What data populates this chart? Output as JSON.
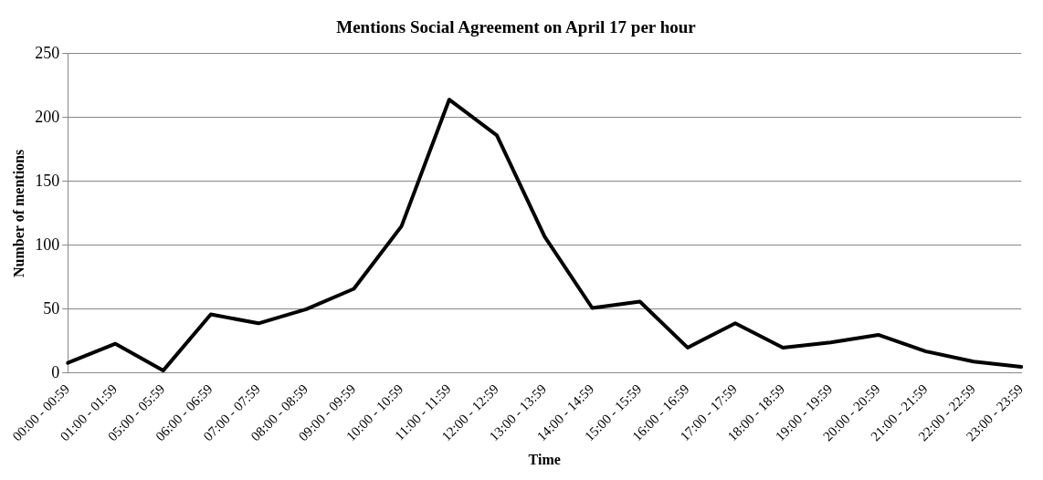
{
  "chart_data": {
    "type": "line",
    "title": "Mentions Social Agreement on April 17 per hour",
    "xlabel": "Time",
    "ylabel": "Number of mentions",
    "categories": [
      "00:00 - 00:59",
      "01:00 - 01:59",
      "05:00 - 05:59",
      "06:00 - 06:59",
      "07:00 - 07:59",
      "08:00 - 08:59",
      "09:00 - 09:59",
      "10:00 - 10:59",
      "11:00 - 11:59",
      "12:00 - 12:59",
      "13:00 - 13:59",
      "14:00 - 14:59",
      "15:00 - 15:59",
      "16:00 - 16:59",
      "17:00 - 17:59",
      "18:00 - 18:59",
      "19:00 - 19:59",
      "20:00 - 20:59",
      "21:00 - 21:59",
      "22:00 - 22:59",
      "23:00 - 23:59"
    ],
    "series": [
      {
        "color": "#000000",
        "values": [
          8,
          23,
          2,
          46,
          39,
          50,
          66,
          115,
          214,
          186,
          107,
          51,
          56,
          20,
          39,
          20,
          24,
          30,
          17,
          9,
          5
        ]
      }
    ],
    "ylim": [
      0,
      250
    ],
    "yticks": [
      0,
      50,
      100,
      150,
      200,
      250
    ],
    "grid": "y",
    "legend": false,
    "marker": "none",
    "line_style": "solid"
  }
}
